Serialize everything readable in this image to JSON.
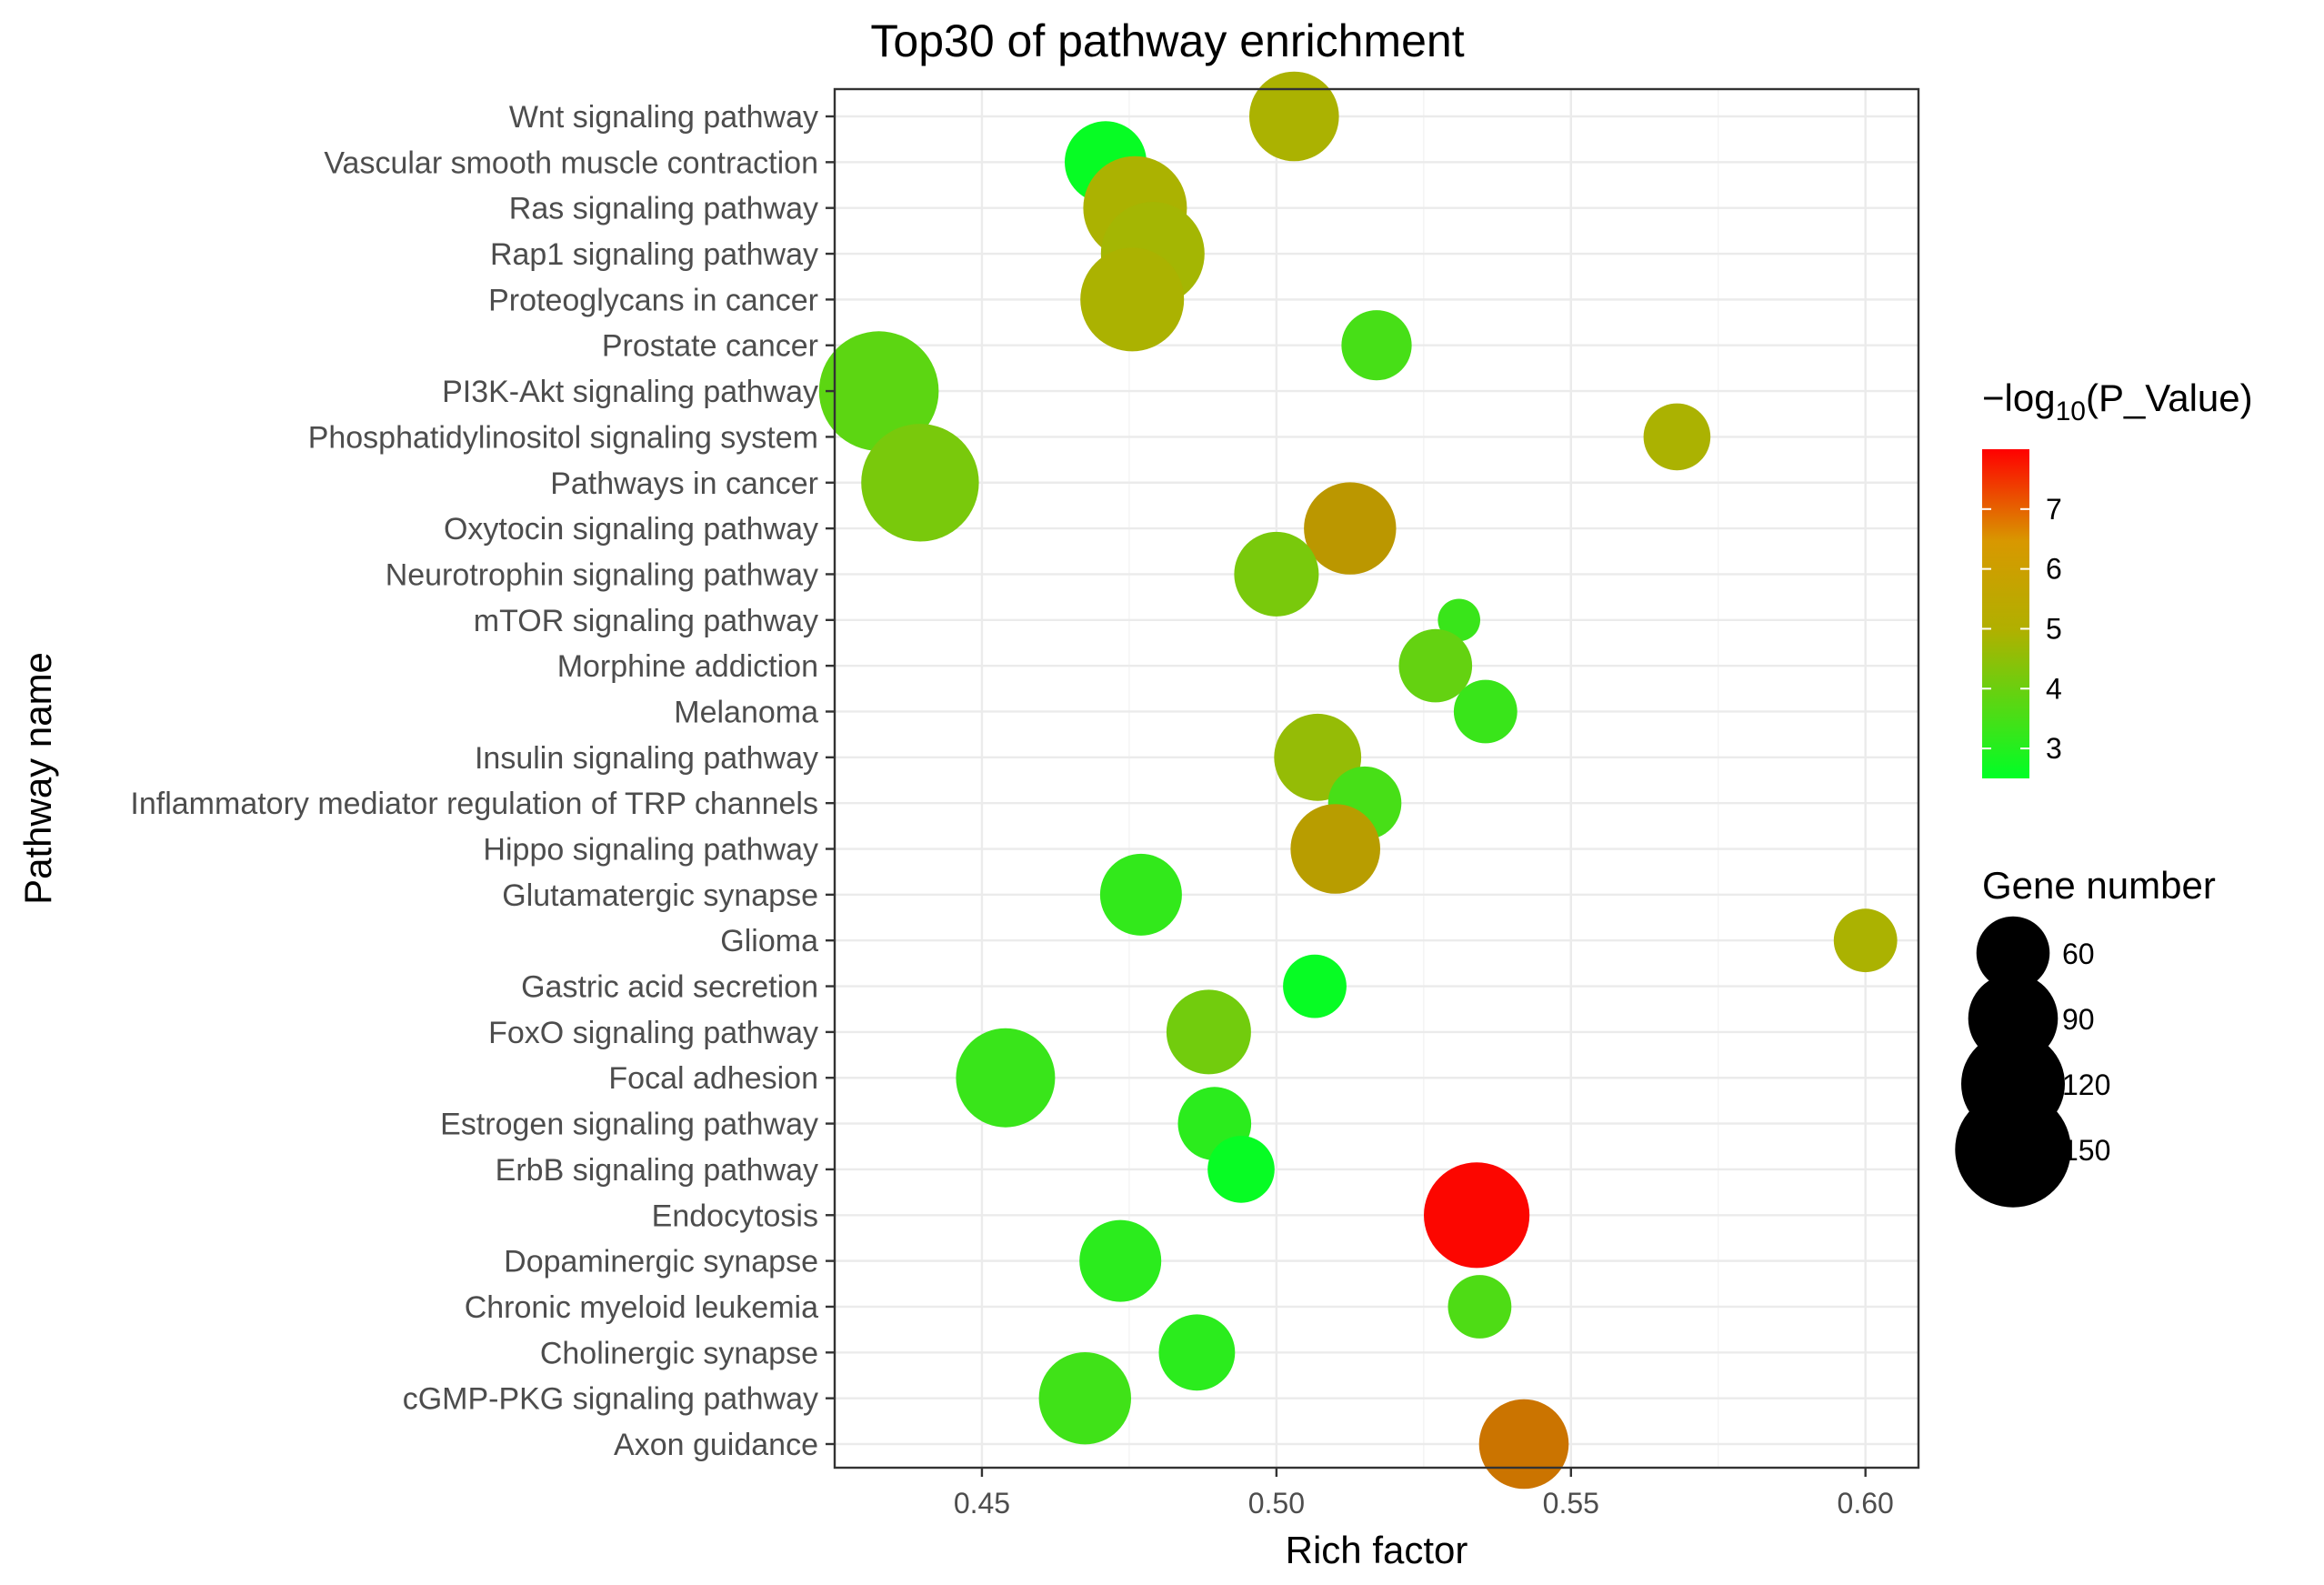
{
  "chart_data": {
    "type": "scatter",
    "title": "Top30 of pathway enrichment",
    "xlabel": "Rich factor",
    "ylabel": "Pathway name",
    "xlim": [
      0.425,
      0.609
    ],
    "x_ticks": [
      0.45,
      0.5,
      0.55,
      0.6
    ],
    "x_tick_labels": [
      "0.45",
      "0.50",
      "0.55",
      "0.60"
    ],
    "grid": true,
    "color_legend": {
      "title_prefix": "−log",
      "title_sub": "10",
      "title_suffix": "(P_Value)",
      "min": 2.5,
      "max": 8.0,
      "ticks": [
        3,
        4,
        5,
        6,
        7
      ],
      "tick_labels": [
        "3",
        "4",
        "5",
        "6",
        "7"
      ],
      "colors": [
        "#00ff26",
        "#ff0000"
      ],
      "mid_color": "#b0b000"
    },
    "size_legend": {
      "title": "Gene number",
      "values": [
        60,
        90,
        120,
        150
      ],
      "labels": [
        "60",
        "90",
        "120",
        "150"
      ]
    },
    "legend_position": "right",
    "points": [
      {
        "pathway": "Wnt signaling pathway",
        "rich_factor": 0.503,
        "neg_log10_p": 4.9,
        "gene_number": 90
      },
      {
        "pathway": "Vascular smooth muscle contraction",
        "rich_factor": 0.471,
        "neg_log10_p": 2.6,
        "gene_number": 75
      },
      {
        "pathway": "Ras signaling pathway",
        "rich_factor": 0.476,
        "neg_log10_p": 4.9,
        "gene_number": 120
      },
      {
        "pathway": "Rap1 signaling pathway",
        "rich_factor": 0.479,
        "neg_log10_p": 4.8,
        "gene_number": 120
      },
      {
        "pathway": "Proteoglycans in cancer",
        "rich_factor": 0.4755,
        "neg_log10_p": 4.9,
        "gene_number": 120
      },
      {
        "pathway": "Prostate cancer",
        "rich_factor": 0.517,
        "neg_log10_p": 3.5,
        "gene_number": 55
      },
      {
        "pathway": "PI3K-Akt signaling pathway",
        "rich_factor": 0.4325,
        "neg_log10_p": 3.8,
        "gene_number": 160
      },
      {
        "pathway": "Phosphatidylinositol signaling system",
        "rich_factor": 0.568,
        "neg_log10_p": 4.9,
        "gene_number": 50
      },
      {
        "pathway": "Pathways in cancer",
        "rich_factor": 0.4395,
        "neg_log10_p": 4.2,
        "gene_number": 155
      },
      {
        "pathway": "Oxytocin signaling pathway",
        "rich_factor": 0.5125,
        "neg_log10_p": 5.4,
        "gene_number": 95
      },
      {
        "pathway": "Neurotrophin signaling pathway",
        "rich_factor": 0.5,
        "neg_log10_p": 4.2,
        "gene_number": 80
      },
      {
        "pathway": "mTOR signaling pathway",
        "rich_factor": 0.531,
        "neg_log10_p": 3.3,
        "gene_number": 20
      },
      {
        "pathway": "Morphine addiction",
        "rich_factor": 0.527,
        "neg_log10_p": 3.9,
        "gene_number": 60
      },
      {
        "pathway": "Melanoma",
        "rich_factor": 0.5355,
        "neg_log10_p": 3.3,
        "gene_number": 45
      },
      {
        "pathway": "Insulin signaling pathway",
        "rich_factor": 0.507,
        "neg_log10_p": 4.6,
        "gene_number": 85
      },
      {
        "pathway": "Inflammatory mediator regulation of TRP channels",
        "rich_factor": 0.515,
        "neg_log10_p": 3.5,
        "gene_number": 60
      },
      {
        "pathway": "Hippo signaling pathway",
        "rich_factor": 0.51,
        "neg_log10_p": 5.3,
        "gene_number": 90
      },
      {
        "pathway": "Glutamatergic synapse",
        "rich_factor": 0.477,
        "neg_log10_p": 3.2,
        "gene_number": 75
      },
      {
        "pathway": "Glioma",
        "rich_factor": 0.6,
        "neg_log10_p": 4.9,
        "gene_number": 45
      },
      {
        "pathway": "Gastric acid secretion",
        "rich_factor": 0.5065,
        "neg_log10_p": 2.6,
        "gene_number": 45
      },
      {
        "pathway": "FoxO signaling pathway",
        "rich_factor": 0.4885,
        "neg_log10_p": 4.1,
        "gene_number": 80
      },
      {
        "pathway": "Focal adhesion",
        "rich_factor": 0.454,
        "neg_log10_p": 3.3,
        "gene_number": 110
      },
      {
        "pathway": "Estrogen signaling pathway",
        "rich_factor": 0.4895,
        "neg_log10_p": 3.1,
        "gene_number": 60
      },
      {
        "pathway": "ErbB signaling pathway",
        "rich_factor": 0.494,
        "neg_log10_p": 2.6,
        "gene_number": 50
      },
      {
        "pathway": "Endocytosis",
        "rich_factor": 0.534,
        "neg_log10_p": 7.9,
        "gene_number": 125
      },
      {
        "pathway": "Dopaminergic synapse",
        "rich_factor": 0.4735,
        "neg_log10_p": 3.1,
        "gene_number": 75
      },
      {
        "pathway": "Chronic myeloid leukemia",
        "rich_factor": 0.5345,
        "neg_log10_p": 3.6,
        "gene_number": 45
      },
      {
        "pathway": "Cholinergic synapse",
        "rich_factor": 0.4865,
        "neg_log10_p": 3.1,
        "gene_number": 65
      },
      {
        "pathway": "cGMP-PKG signaling pathway",
        "rich_factor": 0.4675,
        "neg_log10_p": 3.4,
        "gene_number": 95
      },
      {
        "pathway": "Axon guidance",
        "rich_factor": 0.542,
        "neg_log10_p": 6.0,
        "gene_number": 90
      }
    ]
  }
}
